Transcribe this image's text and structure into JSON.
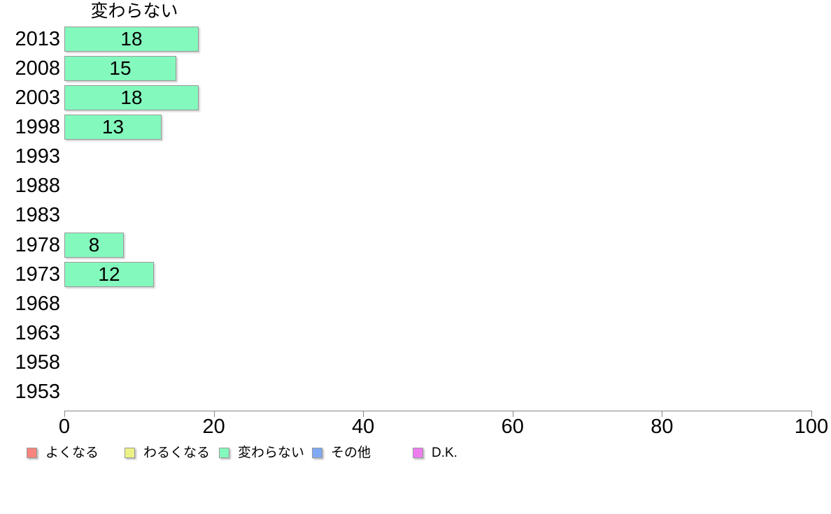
{
  "chart_data": {
    "type": "bar",
    "orientation": "horizontal",
    "title": "変わらない",
    "categories": [
      "2013",
      "2008",
      "2003",
      "1998",
      "1993",
      "1988",
      "1983",
      "1978",
      "1973",
      "1968",
      "1963",
      "1958",
      "1953"
    ],
    "values": [
      18,
      15,
      18,
      13,
      null,
      null,
      null,
      8,
      12,
      null,
      null,
      null,
      null
    ],
    "xlim": [
      0,
      100
    ],
    "x_ticks": [
      "0",
      "20",
      "40",
      "60",
      "80",
      "100"
    ],
    "grid": false,
    "bar_color": "#84f9bd",
    "bar_border_color": "#999999",
    "axis_color": "#888888",
    "text_color": "#000000",
    "legend_position": "bottom",
    "legend": [
      {
        "label": "よくなる",
        "color": "#f8847e"
      },
      {
        "label": "わるくなる",
        "color": "#ecf285"
      },
      {
        "label": "変わらない",
        "color": "#84f9bd"
      },
      {
        "label": "その他",
        "color": "#7fa9f2"
      },
      {
        "label": "D.K.",
        "color": "#ee7cef"
      }
    ]
  }
}
